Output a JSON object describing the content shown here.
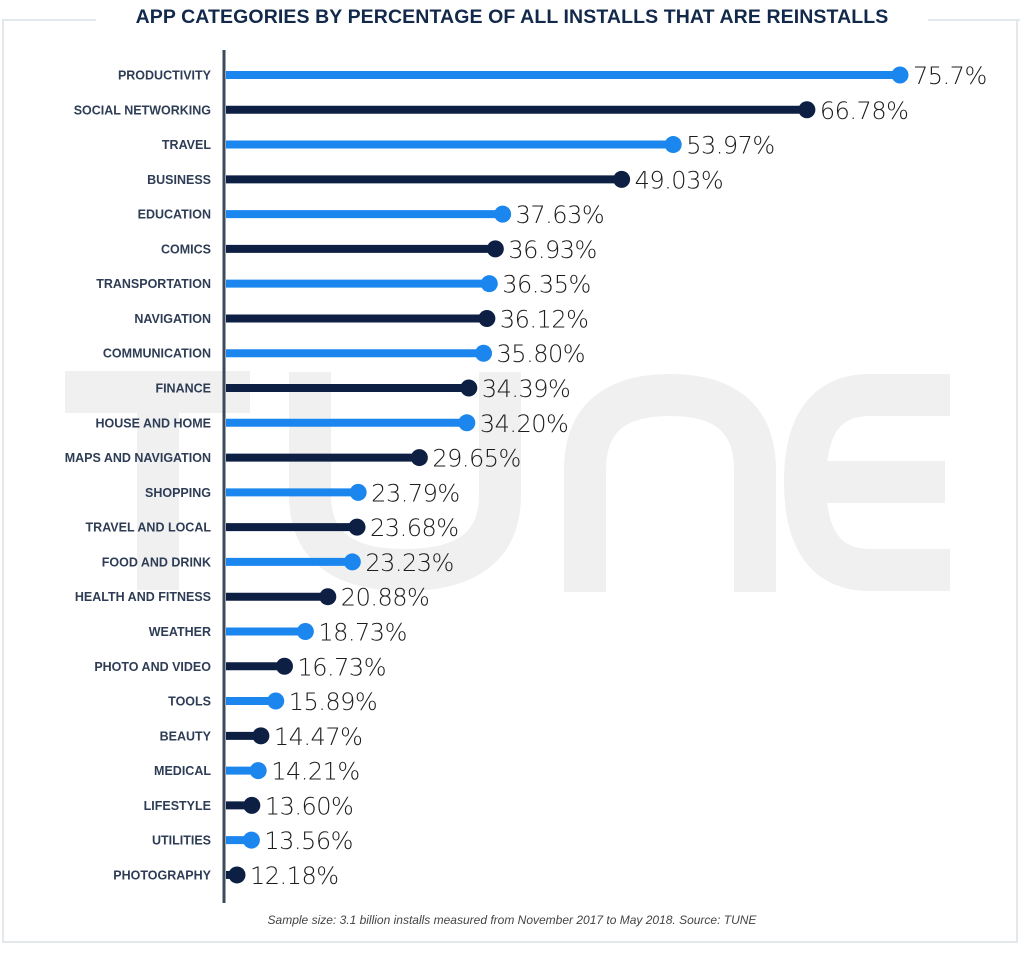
{
  "chart_data": {
    "type": "bar",
    "orientation": "horizontal",
    "style": "lollipop",
    "title": "APP CATEGORIES BY PERCENTAGE OF ALL INSTALLS THAT ARE REINSTALLS",
    "xlabel": "",
    "ylabel": "",
    "unit": "%",
    "categories": [
      "PRODUCTIVITY",
      "SOCIAL NETWORKING",
      "TRAVEL",
      "BUSINESS",
      "EDUCATION",
      "COMICS",
      "TRANSPORTATION",
      "NAVIGATION",
      "COMMUNICATION",
      "FINANCE",
      "HOUSE AND HOME",
      "MAPS AND NAVIGATION",
      "SHOPPING",
      "TRAVEL AND LOCAL",
      "FOOD AND DRINK",
      "HEALTH AND FITNESS",
      "WEATHER",
      "PHOTO AND VIDEO",
      "TOOLS",
      "BEAUTY",
      "MEDICAL",
      "LIFESTYLE",
      "UTILITIES",
      "PHOTOGRAPHY"
    ],
    "values": [
      75.7,
      66.78,
      53.97,
      49.03,
      37.63,
      36.93,
      36.35,
      36.12,
      35.8,
      34.39,
      34.2,
      29.65,
      23.79,
      23.68,
      23.23,
      20.88,
      18.73,
      16.73,
      15.89,
      14.47,
      14.21,
      13.6,
      13.56,
      12.18
    ],
    "value_labels": [
      "75.7%",
      "66.78%",
      "53.97%",
      "49.03%",
      "37.63%",
      "36.93%",
      "36.35%",
      "36.12%",
      "35.80%",
      "34.39%",
      "34.20%",
      "29.65%",
      "23.79%",
      "23.68%",
      "23.23%",
      "20.88%",
      "18.73%",
      "16.73%",
      "15.89%",
      "14.47%",
      "14.21%",
      "13.60%",
      "13.56%",
      "12.18%"
    ],
    "colors": [
      "#1a86ee",
      "#0e1f44"
    ],
    "grid": false,
    "legend": "none"
  },
  "footnote": "Sample size: 3.1 billion installs measured from November 2017 to May 2018. Source: TUNE",
  "watermark": "TUNE"
}
